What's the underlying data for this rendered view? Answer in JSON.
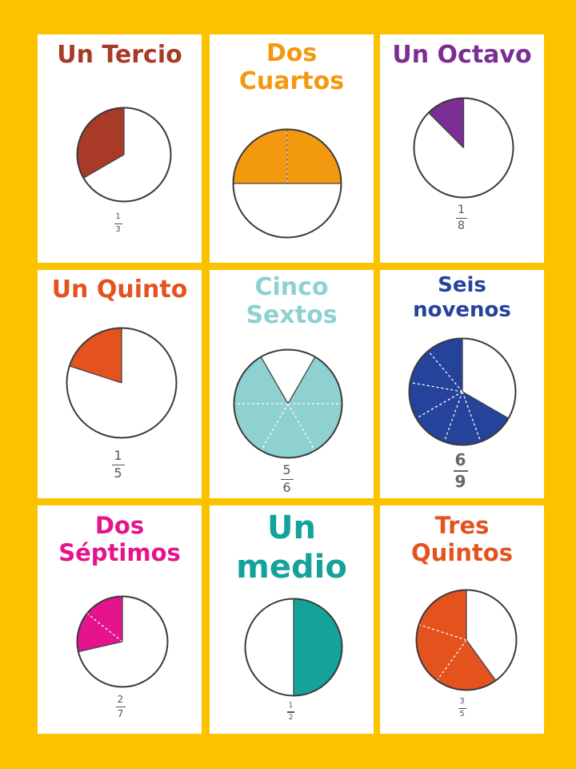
{
  "cards": [
    {
      "title": [
        "Un Tercio"
      ],
      "color": "#a83a27",
      "numerator": 1,
      "denominator": 3,
      "fraction": {
        "num": "1",
        "den": "3"
      }
    },
    {
      "title": [
        "Dos",
        "Cuartos"
      ],
      "color": "#f39910",
      "numerator": 2,
      "denominator": 4,
      "fraction": {
        "num": "",
        "den": ""
      }
    },
    {
      "title": [
        "Un Octavo"
      ],
      "color": "#7b2e93",
      "numerator": 1,
      "denominator": 8,
      "fraction": {
        "num": "1",
        "den": "8"
      }
    },
    {
      "title": [
        "Un Quinto"
      ],
      "color": "#e4521e",
      "numerator": 1,
      "denominator": 5,
      "fraction": {
        "num": "1",
        "den": "5"
      }
    },
    {
      "title": [
        "Cinco",
        "Sextos"
      ],
      "color": "#8fd0d0",
      "numerator": 5,
      "denominator": 6,
      "fraction": {
        "num": "5",
        "den": "6"
      }
    },
    {
      "title": [
        "Seis",
        "novenos"
      ],
      "color": "#25439a",
      "numerator": 6,
      "denominator": 9,
      "fraction": {
        "num": "6",
        "den": "9"
      }
    },
    {
      "title": [
        "Dos",
        "Séptimos"
      ],
      "color": "#e5138c",
      "numerator": 2,
      "denominator": 7,
      "fraction": {
        "num": "2",
        "den": "7"
      }
    },
    {
      "title": [
        "Un",
        "medio"
      ],
      "color": "#13a39a",
      "numerator": 1,
      "denominator": 2,
      "fraction": {
        "num": "1",
        "den": "2"
      }
    },
    {
      "title": [
        "Tres",
        "Quintos"
      ],
      "color": "#e4521e",
      "numerator": 3,
      "denominator": 5,
      "fraction": {
        "num": "3",
        "den": "5"
      }
    }
  ]
}
